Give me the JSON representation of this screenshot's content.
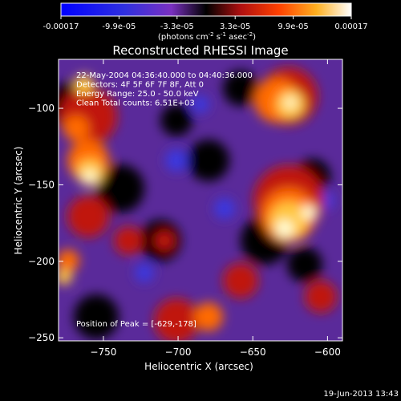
{
  "chart_data": {
    "type": "heatmap",
    "title": "Reconstructed RHESSI Image",
    "xlabel": "Heliocentric X (arcsec)",
    "ylabel": "Heliocentric Y (arcsec)",
    "xlim": [
      -780,
      -590
    ],
    "ylim": [
      -252,
      -68
    ],
    "xticks": [
      -750,
      -700,
      -650,
      -600
    ],
    "yticks": [
      -250,
      -200,
      -150,
      -100
    ],
    "colorbar": {
      "ticks": [
        "-0.00017",
        "-9.9e-05",
        "-3.3e-05",
        "3.3e-05",
        "9.9e-05",
        "0.00017"
      ],
      "unit_prefix": "(photons cm",
      "unit_exp1": "-2",
      "unit_mid": " s",
      "unit_exp2": "-1",
      "unit_mid2": " asec",
      "unit_exp3": "-2",
      "unit_suffix": ")"
    },
    "info_lines": [
      "22-May-2004 04:36:40.000 to 04:40:36.000",
      "Detectors: 4F 5F 6F 7F 8F, Att 0",
      "Energy Range: 25.0 - 50.0 keV",
      "Clean    Total counts: 6.51E+03"
    ],
    "peak_label": "Position of Peak = [-629,-178]",
    "peak": [
      -629,
      -178
    ]
  },
  "timestamp": "19-Jun-2013 13:43",
  "colors": {
    "background": "#000000",
    "foreground": "#ffffff",
    "colormap": [
      "#1a1aff",
      "#3d3df0",
      "#6a3ad8",
      "#7a3ab8",
      "#000000",
      "#9a1010",
      "#e02000",
      "#ff7a00",
      "#ffd040",
      "#ffffe0"
    ]
  }
}
